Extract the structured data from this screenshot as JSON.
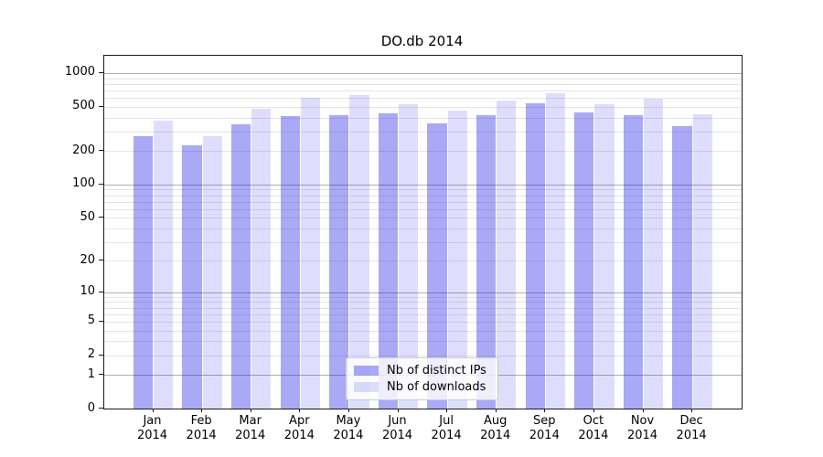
{
  "title": "DO.db 2014",
  "chart_data": {
    "type": "bar",
    "title": "DO.db 2014",
    "scale": "log(1+x)",
    "categories": [
      "Jan",
      "Feb",
      "Mar",
      "Apr",
      "May",
      "Jun",
      "Jul",
      "Aug",
      "Sep",
      "Oct",
      "Nov",
      "Dec"
    ],
    "year": "2014",
    "series": [
      {
        "name": "Nb of distinct IPs",
        "color": "rgba(8,8,230,0.35)",
        "values": [
          274,
          225,
          350,
          414,
          420,
          436,
          357,
          421,
          540,
          444,
          420,
          337
        ]
      },
      {
        "name": "Nb of downloads",
        "color": "rgba(8,8,230,0.135)",
        "values": [
          372,
          272,
          475,
          604,
          630,
          522,
          458,
          567,
          658,
          525,
          592,
          430
        ]
      }
    ],
    "y_tick_labels": [
      1000,
      500,
      200,
      100,
      50,
      20,
      10,
      5,
      2,
      1,
      0
    ],
    "grid_major_values": [
      1,
      10,
      100,
      1000
    ],
    "ylim": [
      0,
      1430
    ],
    "grid": "both",
    "legend_position": "lower center",
    "xlabel": "",
    "ylabel": ""
  },
  "legend": {
    "items": [
      {
        "label": "Nb of distinct IPs"
      },
      {
        "label": "Nb of downloads"
      }
    ]
  },
  "colors": {
    "bar_distinct_ips": "rgba(8,8,230,0.35)",
    "bar_downloads": "rgba(8,8,230,0.135)",
    "grid_major": "#b0b0b0",
    "grid_minor": "#e5e5e5",
    "spine": "#1a1a1a"
  }
}
